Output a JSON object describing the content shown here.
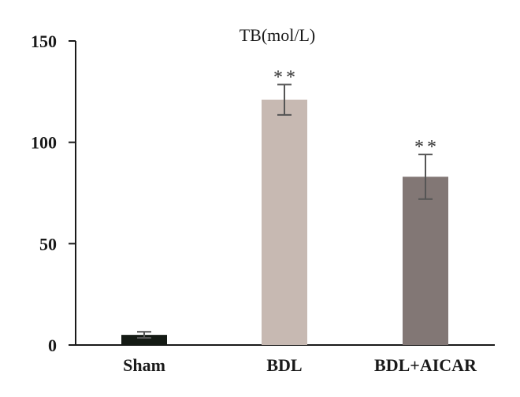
{
  "chart_data": {
    "type": "bar",
    "title": "TB(mol/L)",
    "xlabel": "",
    "ylabel": "",
    "categories": [
      "Sham",
      "BDL",
      "BDL+AICAR"
    ],
    "values": [
      5,
      121,
      83
    ],
    "errors": [
      1.5,
      7.5,
      11
    ],
    "significance": [
      "",
      "**",
      "**"
    ],
    "ylim": [
      0,
      150
    ],
    "yticks": [
      0,
      50,
      100,
      150
    ],
    "ytick_labels": [
      "0",
      "50",
      "100",
      "150"
    ],
    "grid": false,
    "legend": "none",
    "colors": [
      "#141a14",
      "#c7b9b2",
      "#827775"
    ],
    "axis_color": "#1a1a1a",
    "errorbar_color": "#555555"
  }
}
